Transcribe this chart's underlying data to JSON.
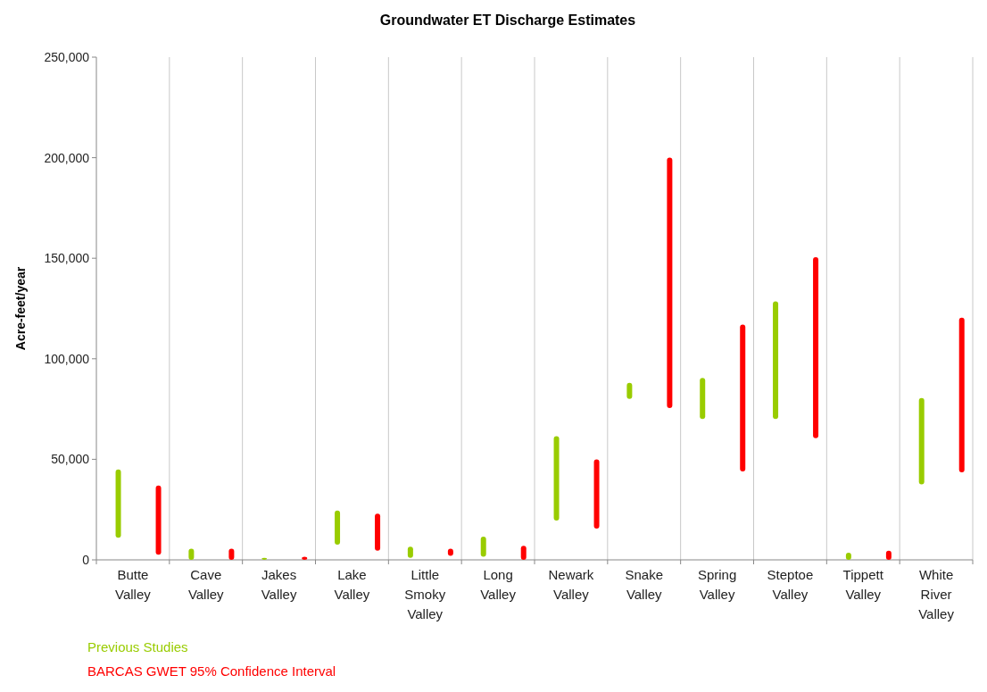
{
  "chart_data": {
    "type": "bar",
    "title": "Groundwater ET Discharge Estimates",
    "ylabel": "Acre-feet/year",
    "categories": [
      "Butte Valley",
      "Cave Valley",
      "Jakes Valley",
      "Lake Valley",
      "Little Smoky Valley",
      "Long Valley",
      "Newark Valley",
      "Snake Valley",
      "Spring Valley",
      "Steptoe Valley",
      "Tippett Valley",
      "White River Valley"
    ],
    "series": [
      {
        "name": "Previous Studies",
        "color": "#99cc00",
        "base": [
          11000,
          0,
          0,
          7500,
          1000,
          1500,
          19500,
          80000,
          70000,
          70000,
          0,
          37500
        ],
        "values": [
          34000,
          5500,
          1000,
          17000,
          5500,
          10000,
          42000,
          8000,
          20500,
          58500,
          3500,
          43000
        ]
      },
      {
        "name": "BARCAS GWET 95% Confidence Interval",
        "color": "#ff0000",
        "base": [
          2500,
          0,
          0,
          4500,
          2000,
          0,
          15500,
          75500,
          44000,
          60500,
          0,
          43500
        ],
        "values": [
          34500,
          5500,
          1500,
          18500,
          3500,
          7000,
          34500,
          124500,
          73000,
          90000,
          4500,
          77000
        ]
      }
    ],
    "ylim": [
      0,
      250000
    ],
    "yticks": [
      {
        "value": 0,
        "label": "0"
      },
      {
        "value": 50000,
        "label": "50,000"
      },
      {
        "value": 100000,
        "label": "100,000"
      },
      {
        "value": 150000,
        "label": "150,000"
      },
      {
        "value": 200000,
        "label": "200,000"
      },
      {
        "value": 250000,
        "label": "250,000"
      }
    ],
    "grid": "x",
    "legend": "bottom"
  }
}
